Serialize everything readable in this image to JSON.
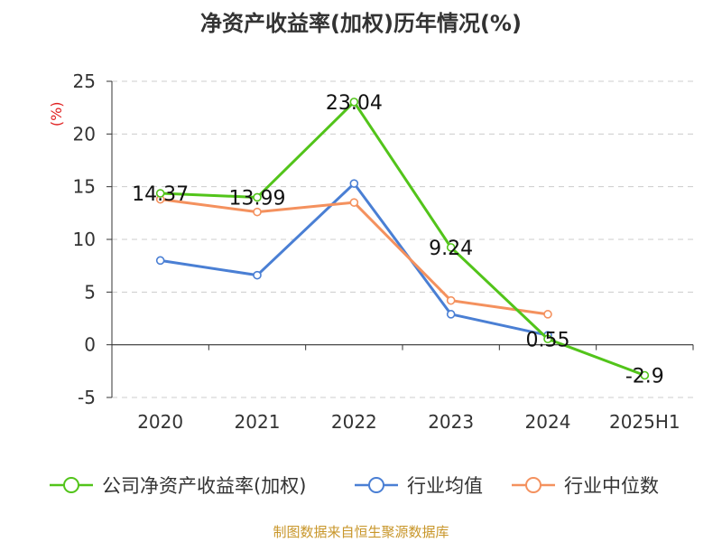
{
  "title": "净资产收益率(加权)历年情况(%)",
  "source": "制图数据来自恒生聚源数据库",
  "colors": {
    "company": "#52c41a",
    "industry_avg": "#4a7fd4",
    "industry_median": "#f4915e",
    "ylabel": "#e02020",
    "source": "#c8962a",
    "grid": "#cccccc",
    "axis": "#333333"
  },
  "chart_data": {
    "type": "line",
    "categories": [
      "2020",
      "2021",
      "2022",
      "2023",
      "2024",
      "2025H1"
    ],
    "ylabel": "(%)",
    "ylim": [
      -5,
      25
    ],
    "yticks": [
      25,
      20,
      15,
      10,
      5,
      0,
      -5
    ],
    "grid": true,
    "legend_position": "bottom",
    "series": [
      {
        "name": "公司净资产收益率(加权)",
        "key": "company",
        "values": [
          14.37,
          13.99,
          23.04,
          9.24,
          0.55,
          -2.9
        ],
        "labels": [
          "14.37",
          "13.99",
          "23.04",
          "9.24",
          "0.55",
          "-2.9"
        ]
      },
      {
        "name": "行业均值",
        "key": "industry_avg",
        "values": [
          8.0,
          6.6,
          15.3,
          2.9,
          0.9,
          null
        ]
      },
      {
        "name": "行业中位数",
        "key": "industry_median",
        "values": [
          13.8,
          12.6,
          13.5,
          4.2,
          2.9,
          null
        ]
      }
    ]
  }
}
